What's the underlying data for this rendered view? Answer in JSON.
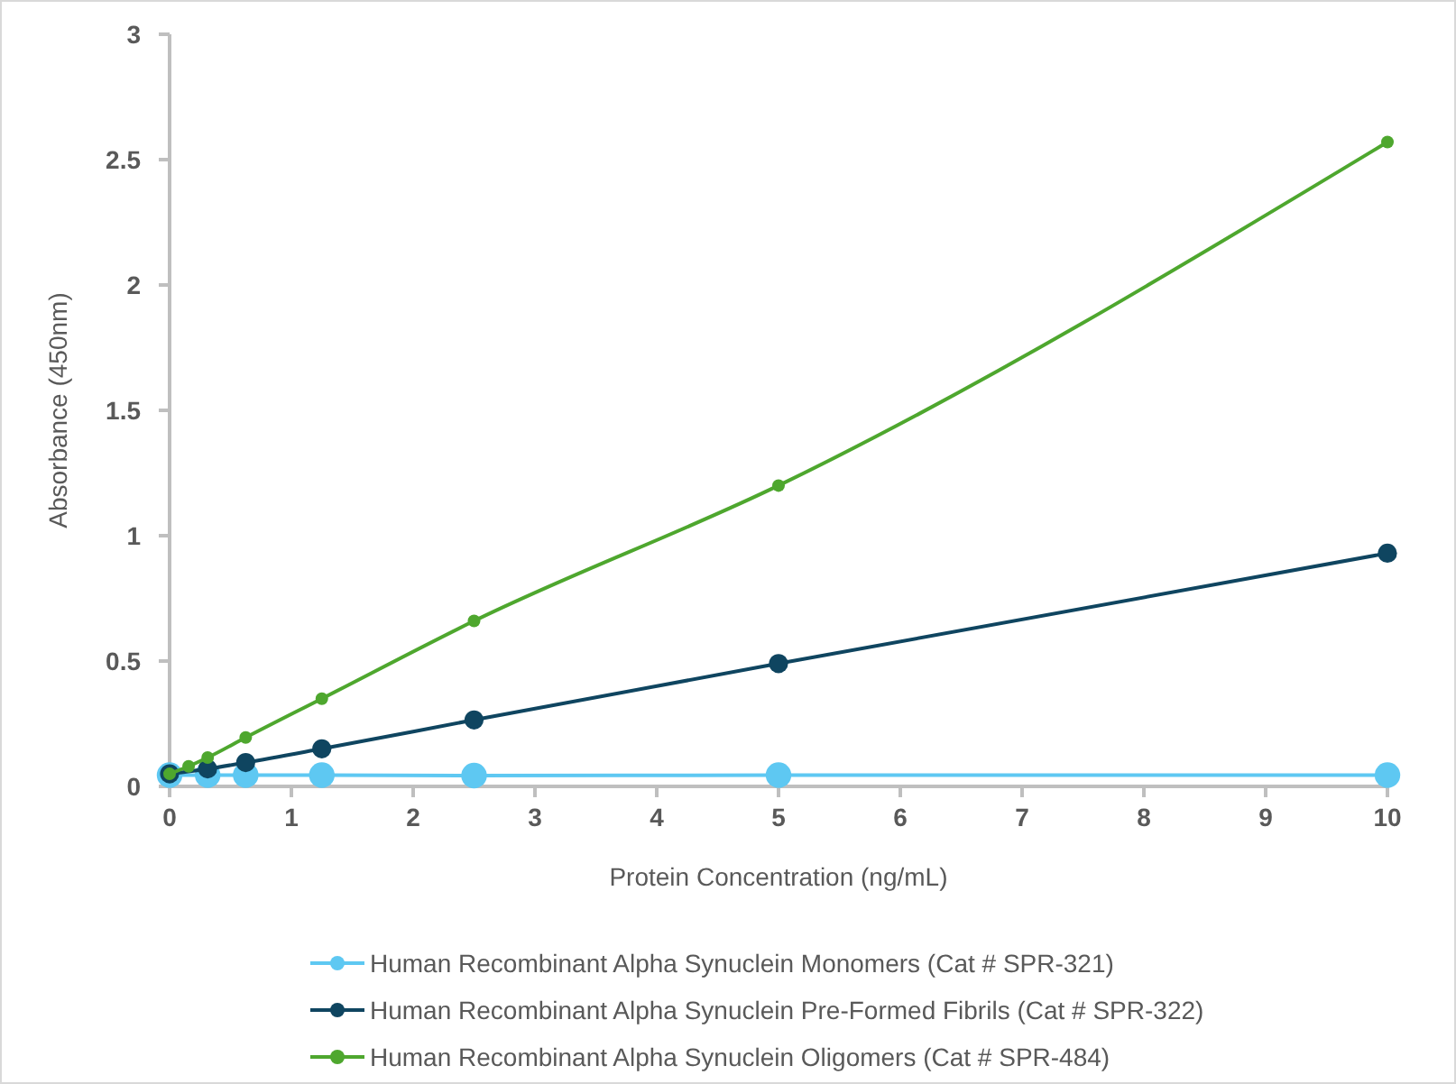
{
  "chart_data": {
    "type": "line",
    "xlabel": "Protein Concentration (ng/mL)",
    "ylabel": "Absorbance (450nm)",
    "xlim": [
      0,
      10
    ],
    "xticks": [
      0,
      1,
      2,
      3,
      4,
      5,
      6,
      7,
      8,
      9,
      10
    ],
    "ylim": [
      0,
      3
    ],
    "yticks": [
      0,
      0.5,
      1,
      1.5,
      2,
      2.5,
      3
    ],
    "grid": false,
    "legend": "bottom",
    "marker": "circle",
    "line_style": "solid",
    "series": [
      {
        "name": "Human Recombinant Alpha Synuclein Monomers (Cat # SPR-321)",
        "color": "#5ec8f2",
        "x": [
          0,
          0.3125,
          0.625,
          1.25,
          2.5,
          5,
          10
        ],
        "values": [
          0.045,
          0.045,
          0.045,
          0.045,
          0.043,
          0.045,
          0.045
        ]
      },
      {
        "name": "Human Recombinant Alpha Synuclein Pre-Formed Fibrils (Cat # SPR-322)",
        "color": "#0f4560",
        "x": [
          0,
          0.3125,
          0.625,
          1.25,
          2.5,
          5,
          10
        ],
        "values": [
          0.05,
          0.07,
          0.095,
          0.15,
          0.265,
          0.49,
          0.93
        ]
      },
      {
        "name": "Human Recombinant Alpha Synuclein Oligomers (Cat # SPR-484)",
        "color": "#4ea72e",
        "x": [
          0,
          0.156,
          0.3125,
          0.625,
          1.25,
          2.5,
          5,
          10
        ],
        "values": [
          0.05,
          0.08,
          0.115,
          0.195,
          0.35,
          0.66,
          1.2,
          2.57
        ]
      }
    ]
  }
}
